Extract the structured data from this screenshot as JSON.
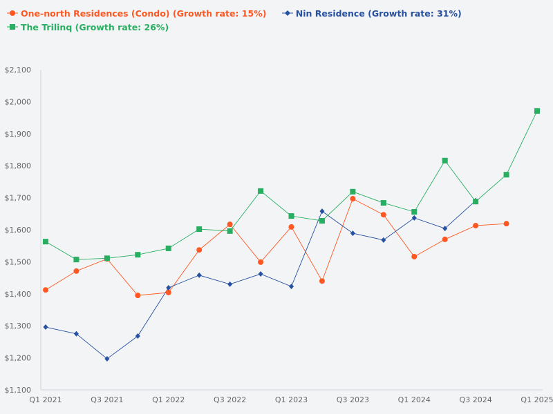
{
  "chart_data": {
    "type": "line",
    "categories": [
      "Q1 2021",
      "Q2 2021",
      "Q3 2021",
      "Q4 2021",
      "Q1 2022",
      "Q2 2022",
      "Q3 2022",
      "Q4 2022",
      "Q1 2023",
      "Q2 2023",
      "Q3 2023",
      "Q4 2023",
      "Q1 2024",
      "Q2 2024",
      "Q3 2024",
      "Q4 2024",
      "Q1 2025"
    ],
    "x_tick_labels": [
      "Q1 2021",
      "Q3 2021",
      "Q1 2022",
      "Q3 2022",
      "Q1 2023",
      "Q3 2023",
      "Q1 2024",
      "Q3 2024",
      "Q1 2025"
    ],
    "y_tick_labels": [
      "$1,100",
      "$1,200",
      "$1,300",
      "$1,400",
      "$1,500",
      "$1,600",
      "$1,700",
      "$1,800",
      "$1,900",
      "$2,000",
      "$2,100"
    ],
    "ylim": [
      1100,
      2100
    ],
    "grid": false,
    "legend_position": "top-left",
    "series": [
      {
        "name": "One-north Residences (Condo) (Growth rate: 15%)",
        "color": "#ff5722",
        "marker": "circle",
        "values": [
          1412,
          1471,
          1509,
          1395,
          1404,
          1537,
          1617,
          1499,
          1609,
          1440,
          1697,
          1647,
          1516,
          1570,
          1613,
          1619,
          null
        ]
      },
      {
        "name": "Nin Residence (Growth rate: 31%)",
        "color": "#2650a0",
        "marker": "diamond",
        "values": [
          1296,
          1275,
          1197,
          1268,
          1419,
          1458,
          1430,
          1462,
          1423,
          1658,
          1589,
          1568,
          1637,
          1604,
          1691,
          null,
          null
        ]
      },
      {
        "name": "The Trilinq (Growth rate: 26%)",
        "color": "#27ae60",
        "marker": "square",
        "values": [
          1563,
          1507,
          1511,
          1522,
          1542,
          1602,
          1596,
          1721,
          1643,
          1628,
          1719,
          1684,
          1656,
          1816,
          1688,
          1772,
          1971
        ]
      }
    ]
  }
}
